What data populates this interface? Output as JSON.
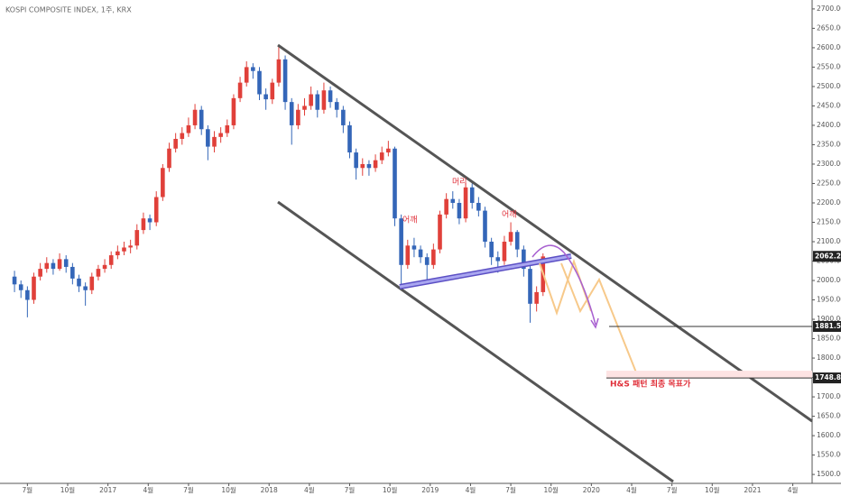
{
  "chart_data": {
    "type": "candlestick",
    "title": "KOSPI COMPOSITE INDEX, 1주, KRX",
    "up_color": "#e0403a",
    "down_color": "#3466b8",
    "x": [
      2016.42,
      2016.46,
      2016.5,
      2016.54,
      2016.58,
      2016.62,
      2016.66,
      2016.7,
      2016.74,
      2016.78,
      2016.82,
      2016.86,
      2016.9,
      2016.94,
      2016.98,
      2017.02,
      2017.06,
      2017.1,
      2017.14,
      2017.18,
      2017.22,
      2017.26,
      2017.3,
      2017.34,
      2017.38,
      2017.42,
      2017.46,
      2017.5,
      2017.54,
      2017.58,
      2017.62,
      2017.66,
      2017.7,
      2017.74,
      2017.78,
      2017.82,
      2017.86,
      2017.9,
      2017.94,
      2017.98,
      2018.02,
      2018.06,
      2018.1,
      2018.14,
      2018.18,
      2018.22,
      2018.26,
      2018.3,
      2018.34,
      2018.38,
      2018.42,
      2018.46,
      2018.5,
      2018.54,
      2018.58,
      2018.62,
      2018.66,
      2018.7,
      2018.74,
      2018.78,
      2018.82,
      2018.86,
      2018.9,
      2018.94,
      2018.98,
      2019.02,
      2019.06,
      2019.1,
      2019.14,
      2019.18,
      2019.22,
      2019.26,
      2019.3,
      2019.34,
      2019.38,
      2019.42,
      2019.46,
      2019.5,
      2019.54,
      2019.58,
      2019.62,
      2019.66,
      2019.7
    ],
    "open": [
      2010,
      1990,
      1975,
      1950,
      2010,
      2030,
      2045,
      2030,
      2055,
      2035,
      2005,
      1985,
      1975,
      2010,
      2030,
      2040,
      2065,
      2075,
      2085,
      2090,
      2130,
      2160,
      2150,
      2215,
      2290,
      2340,
      2365,
      2380,
      2400,
      2440,
      2390,
      2345,
      2370,
      2380,
      2400,
      2470,
      2510,
      2550,
      2540,
      2480,
      2467,
      2510,
      2570,
      2460,
      2400,
      2440,
      2450,
      2480,
      2440,
      2490,
      2460,
      2440,
      2400,
      2330,
      2290,
      2300,
      2290,
      2310,
      2330,
      2340,
      2160,
      2040,
      2090,
      2080,
      2060,
      2040,
      2080,
      2170,
      2210,
      2200,
      2160,
      2240,
      2200,
      2180,
      2100,
      2060,
      2050,
      2100,
      2125,
      2080,
      2030,
      1940,
      1970
    ],
    "high": [
      2025,
      2000,
      1985,
      2020,
      2045,
      2060,
      2055,
      2070,
      2065,
      2045,
      2015,
      1995,
      2020,
      2040,
      2055,
      2075,
      2090,
      2100,
      2105,
      2145,
      2175,
      2170,
      2230,
      2300,
      2355,
      2380,
      2395,
      2420,
      2455,
      2450,
      2400,
      2385,
      2395,
      2415,
      2480,
      2525,
      2565,
      2560,
      2550,
      2495,
      2520,
      2607,
      2580,
      2470,
      2455,
      2470,
      2500,
      2490,
      2510,
      2500,
      2470,
      2450,
      2410,
      2340,
      2315,
      2310,
      2325,
      2345,
      2360,
      2345,
      2170,
      2105,
      2110,
      2090,
      2070,
      2095,
      2180,
      2225,
      2230,
      2210,
      2252,
      2250,
      2215,
      2190,
      2110,
      2075,
      2115,
      2150,
      2130,
      2090,
      2040,
      1985,
      2070
    ],
    "low": [
      1970,
      1955,
      1905,
      1940,
      2000,
      2020,
      2015,
      2025,
      2020,
      1990,
      1970,
      1935,
      1965,
      2000,
      2020,
      2030,
      2055,
      2065,
      2070,
      2080,
      2120,
      2130,
      2140,
      2205,
      2280,
      2330,
      2350,
      2370,
      2390,
      2375,
      2310,
      2330,
      2355,
      2370,
      2390,
      2460,
      2500,
      2520,
      2465,
      2440,
      2455,
      2500,
      2440,
      2350,
      2390,
      2425,
      2440,
      2420,
      2430,
      2445,
      2420,
      2380,
      2315,
      2260,
      2270,
      2270,
      2280,
      2300,
      2320,
      2140,
      1985,
      2030,
      2060,
      2045,
      1995,
      2030,
      2070,
      2160,
      2185,
      2145,
      2150,
      2185,
      2165,
      2085,
      2040,
      2020,
      2040,
      2090,
      2060,
      2010,
      1891,
      1920,
      1960
    ],
    "close": [
      1990,
      1975,
      1950,
      2010,
      2030,
      2045,
      2030,
      2055,
      2035,
      2005,
      1985,
      1975,
      2010,
      2030,
      2040,
      2065,
      2075,
      2085,
      2090,
      2130,
      2160,
      2150,
      2215,
      2290,
      2340,
      2365,
      2380,
      2400,
      2440,
      2390,
      2345,
      2370,
      2380,
      2400,
      2470,
      2510,
      2550,
      2540,
      2480,
      2467,
      2510,
      2570,
      2460,
      2400,
      2440,
      2450,
      2480,
      2440,
      2490,
      2460,
      2440,
      2400,
      2330,
      2290,
      2300,
      2290,
      2310,
      2330,
      2340,
      2160,
      2040,
      2090,
      2080,
      2060,
      2040,
      2080,
      2170,
      2210,
      2200,
      2160,
      2240,
      2200,
      2180,
      2100,
      2060,
      2050,
      2100,
      2125,
      2080,
      2030,
      1940,
      1970,
      2062
    ],
    "xlim": [
      2016.33,
      2021.37
    ],
    "xticks": [
      {
        "value": 2016.5,
        "label": "7월"
      },
      {
        "value": 2016.75,
        "label": "10월"
      },
      2017,
      {
        "value": 2017.25,
        "label": "4월"
      },
      {
        "value": 2017.5,
        "label": "7월"
      },
      {
        "value": 2017.75,
        "label": "10월"
      },
      2018,
      {
        "value": 2018.25,
        "label": "4월"
      },
      {
        "value": 2018.5,
        "label": "7월"
      },
      {
        "value": 2018.75,
        "label": "10월"
      },
      2019,
      {
        "value": 2019.25,
        "label": "4월"
      },
      {
        "value": 2019.5,
        "label": "7월"
      },
      {
        "value": 2019.75,
        "label": "10월"
      },
      2020,
      {
        "value": 2020.25,
        "label": "4월"
      },
      {
        "value": 2020.5,
        "label": "7월"
      },
      {
        "value": 2020.75,
        "label": "10월"
      },
      2021,
      {
        "value": 2021.25,
        "label": "4월"
      }
    ],
    "ylim": [
      1477,
      2723
    ],
    "yticks": [
      {
        "value": 1500,
        "label": "1500.00"
      },
      {
        "value": 1550,
        "label": "1550.00"
      },
      {
        "value": 1600,
        "label": "1600.00"
      },
      {
        "value": 1650,
        "label": "1650.00"
      },
      {
        "value": 1700,
        "label": "1700.00"
      },
      {
        "value": 1750,
        "label": "1750.00"
      },
      {
        "value": 1800,
        "label": "1800.00"
      },
      {
        "value": 1850,
        "label": "1850.00"
      },
      {
        "value": 1900,
        "label": "1900.00"
      },
      {
        "value": 1950,
        "label": "1950.00"
      },
      {
        "value": 2000,
        "label": "2000.00"
      },
      {
        "value": 2050,
        "label": "2050.00"
      },
      {
        "value": 2100,
        "label": "2100.00"
      },
      {
        "value": 2150,
        "label": "2150.00"
      },
      {
        "value": 2200,
        "label": "2200.00"
      },
      {
        "value": 2250,
        "label": "2250.00"
      },
      {
        "value": 2300,
        "label": "2300.00"
      },
      {
        "value": 2350,
        "label": "2350.00"
      },
      {
        "value": 2400,
        "label": "2400.00"
      },
      {
        "value": 2450,
        "label": "2450.00"
      },
      {
        "value": 2500,
        "label": "2500.00"
      },
      {
        "value": 2550,
        "label": "2550.00"
      },
      {
        "value": 2600,
        "label": "2600.00"
      },
      {
        "value": 2650,
        "label": "2650.00"
      },
      {
        "value": 2700,
        "label": "2700.00"
      }
    ],
    "last_price": 2062.22,
    "levels": [
      1881.53,
      {
        "value": 1748.8,
        "label": "1748.80"
      }
    ],
    "annotations": [
      "어깨",
      "머리",
      "어깨"
    ],
    "target_label": "H&S 패턴 최종 목표가"
  }
}
